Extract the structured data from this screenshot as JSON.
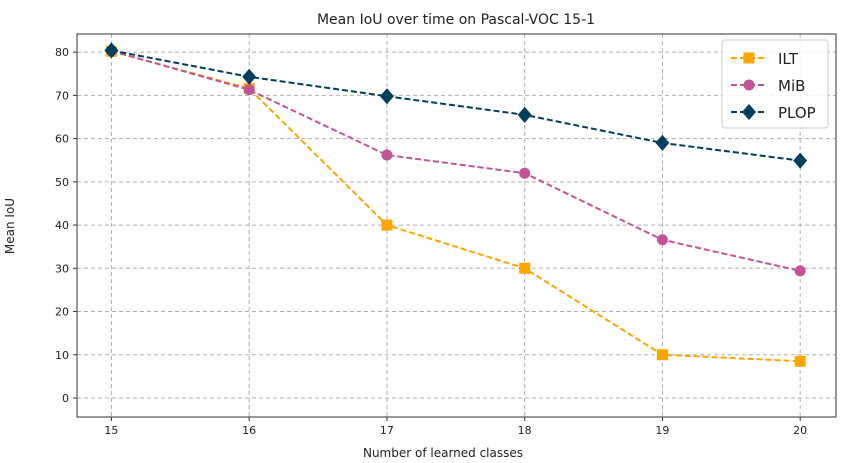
{
  "chart_data": {
    "type": "line",
    "title": "Mean IoU over time on Pascal-VOC 15-1",
    "xlabel": "Number of learned classes",
    "ylabel": "Mean IoU",
    "x": [
      15,
      16,
      17,
      18,
      19,
      20
    ],
    "xlim": [
      14.75,
      20.26
    ],
    "ylim": [
      -4.4,
      84.2
    ],
    "xticks": [
      15,
      16,
      17,
      18,
      19,
      20
    ],
    "yticks": [
      0,
      10,
      20,
      30,
      40,
      50,
      60,
      70,
      80
    ],
    "grid": true,
    "legend_position": "top-right",
    "series": [
      {
        "name": "ILT",
        "color": "#ffa500",
        "marker": "square",
        "values": [
          80.2,
          71.6,
          40.0,
          30.0,
          10.0,
          8.5
        ]
      },
      {
        "name": "MiB",
        "color": "#c45496",
        "marker": "circle",
        "values": [
          80.3,
          71.3,
          56.2,
          52.0,
          36.6,
          29.4
        ]
      },
      {
        "name": "PLOP",
        "color": "#003f5c",
        "marker": "diamond",
        "values": [
          80.4,
          74.3,
          69.8,
          65.5,
          59.0,
          54.9
        ]
      }
    ]
  }
}
